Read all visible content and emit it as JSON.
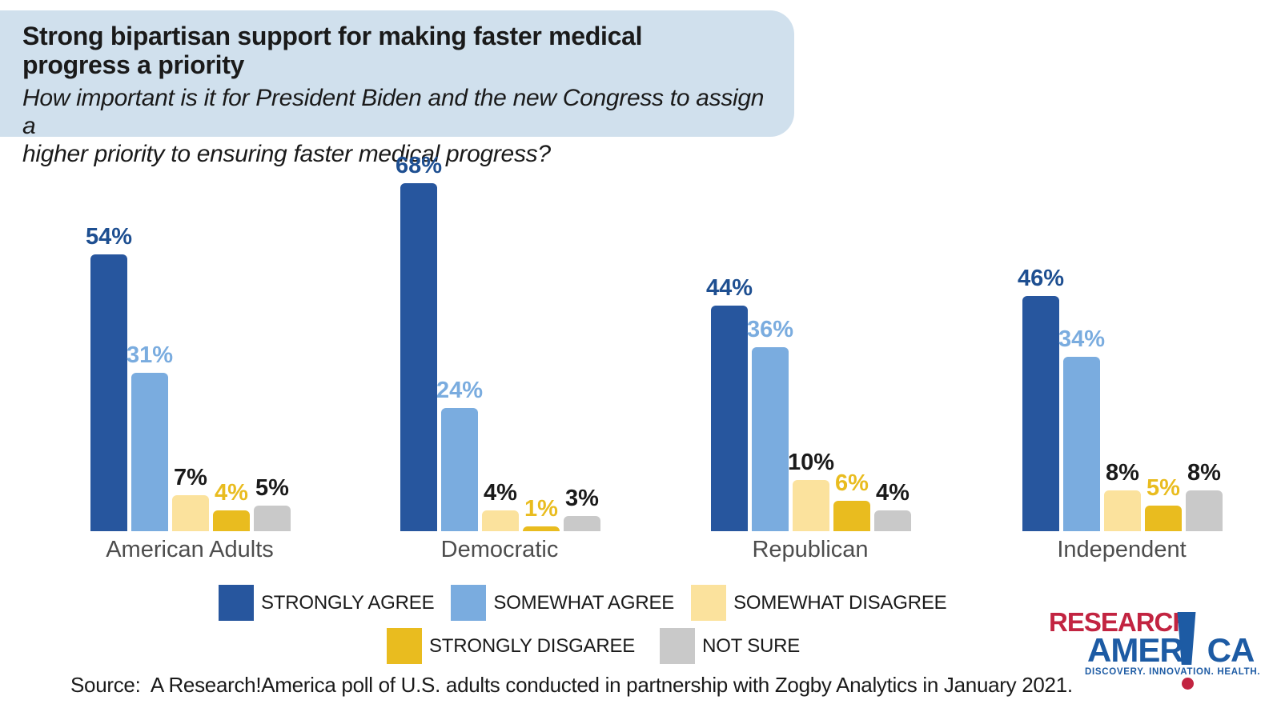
{
  "header": {
    "title_lines": [
      "Strong bipartisan support for making faster medical",
      "progress a priority"
    ],
    "subtitle_lines": [
      "How important is it for President Biden and the new Congress to assign a",
      "higher priority to ensuring faster medical progress?"
    ],
    "card_color": "#d0e0ed"
  },
  "chart_data": {
    "type": "bar",
    "title": "Strong bipartisan support for making faster medical progress a priority",
    "categories": [
      "American Adults",
      "Democratic",
      "Republican",
      "Independent"
    ],
    "series": [
      {
        "name": "STRONGLY AGREE",
        "color": "#27569E",
        "label_color": "#1E4F91",
        "values": [
          54,
          68,
          44,
          46
        ]
      },
      {
        "name": "SOMEWHAT AGREE",
        "color": "#7AACDF",
        "label_color": "#7AACDF",
        "values": [
          31,
          24,
          36,
          34
        ]
      },
      {
        "name": "SOMEWHAT DISAGREE",
        "color": "#FBE29D",
        "label_color": "#1A1A1A",
        "values": [
          7,
          4,
          10,
          8
        ]
      },
      {
        "name": "STRONGLY DISGAREE",
        "color": "#E9BC1F",
        "label_color": "#E9BC1F",
        "values": [
          4,
          1,
          6,
          5
        ]
      },
      {
        "name": "NOT SURE",
        "color": "#C9C9C9",
        "label_color": "#1A1A1A",
        "values": [
          5,
          3,
          4,
          8
        ]
      }
    ],
    "value_suffix": "%",
    "ylim": [
      0,
      75
    ],
    "grid": false,
    "axis_labels": "none",
    "legend_position": "bottom",
    "legend_rows": [
      [
        0,
        1,
        2
      ],
      [
        3,
        4
      ]
    ]
  },
  "logo": {
    "line1": "RESEARCH",
    "line2_left": "AMER",
    "line2_right": "CA",
    "tagline": "DISCOVERY. INNOVATION. HEALTH.",
    "red": "#C22441",
    "blue": "#1D5BA4"
  },
  "source": {
    "text": "Source:  A Research!America poll of U.S. adults conducted in partnership with Zogby Analytics in January 2021."
  }
}
